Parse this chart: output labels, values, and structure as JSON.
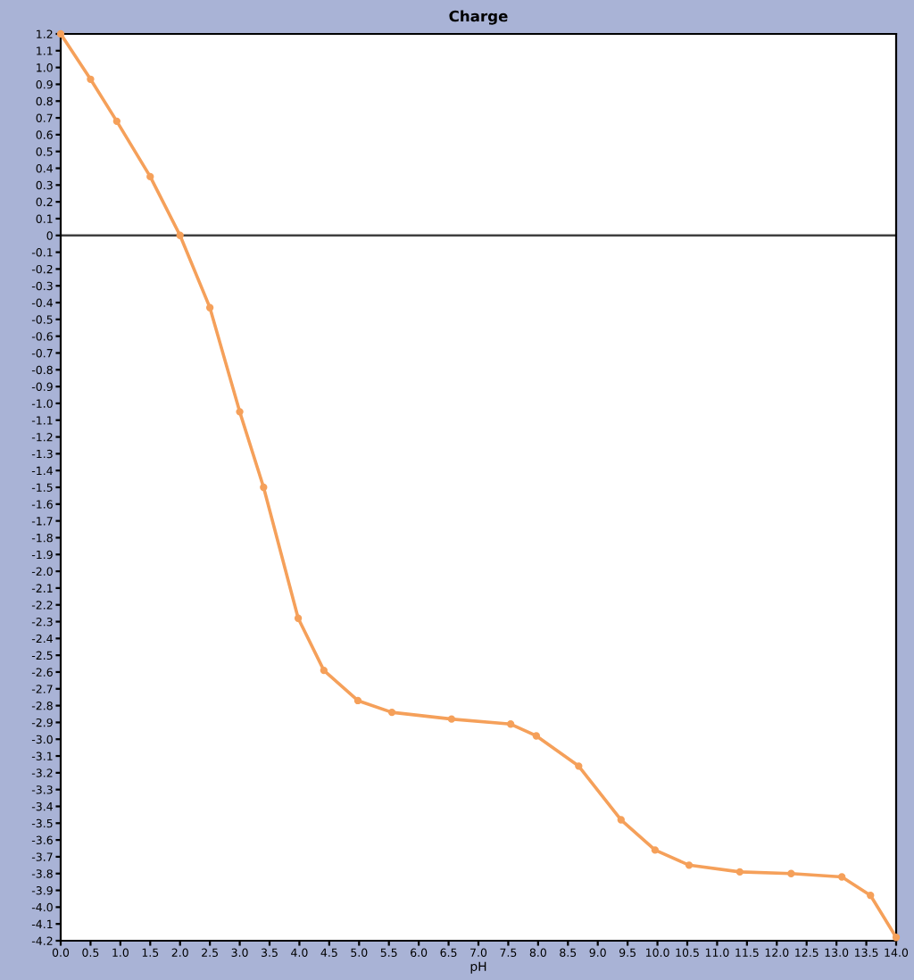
{
  "chart_data": {
    "type": "line",
    "title": "Charge",
    "xlabel": "pH",
    "series": [
      {
        "color": "#f5a05a",
        "x": [
          0,
          0.5,
          0.94,
          1.5,
          2.0,
          2.5,
          3.0,
          3.4,
          3.98,
          4.41,
          4.98,
          5.55,
          6.55,
          7.54,
          7.97,
          8.68,
          9.39,
          9.96,
          10.53,
          11.38,
          12.24,
          13.09,
          13.57,
          14.0
        ],
        "values": [
          1.2,
          0.93,
          0.68,
          0.35,
          0.0,
          -0.43,
          -1.05,
          -1.5,
          -2.28,
          -2.59,
          -2.77,
          -2.84,
          -2.88,
          -2.91,
          -2.98,
          -3.16,
          -3.48,
          -3.66,
          -3.75,
          -3.79,
          -3.8,
          -3.82,
          -3.93,
          -4.18
        ]
      }
    ],
    "xlim": [
      0,
      14
    ],
    "xticks": [
      {
        "value": 0,
        "label": "0.0"
      },
      {
        "value": 0.5,
        "label": "0.5"
      },
      {
        "value": 1,
        "label": "1.0"
      },
      {
        "value": 1.5,
        "label": "1.5"
      },
      {
        "value": 2,
        "label": "2.0"
      },
      {
        "value": 2.5,
        "label": "2.5"
      },
      {
        "value": 3,
        "label": "3.0"
      },
      {
        "value": 3.5,
        "label": "3.5"
      },
      {
        "value": 4,
        "label": "4.0"
      },
      {
        "value": 4.5,
        "label": "4.5"
      },
      {
        "value": 5,
        "label": "5.0"
      },
      {
        "value": 5.5,
        "label": "5.5"
      },
      {
        "value": 6,
        "label": "6.0"
      },
      {
        "value": 6.5,
        "label": "6.5"
      },
      {
        "value": 7,
        "label": "7.0"
      },
      {
        "value": 7.5,
        "label": "7.5"
      },
      {
        "value": 8,
        "label": "8.0"
      },
      {
        "value": 8.5,
        "label": "8.5"
      },
      {
        "value": 9,
        "label": "9.0"
      },
      {
        "value": 9.5,
        "label": "9.5"
      },
      {
        "value": 10,
        "label": "10.0"
      },
      {
        "value": 10.5,
        "label": "10.5"
      },
      {
        "value": 11,
        "label": "11.0"
      },
      {
        "value": 11.5,
        "label": "11.5"
      },
      {
        "value": 12,
        "label": "12.0"
      },
      {
        "value": 12.5,
        "label": "12.5"
      },
      {
        "value": 13,
        "label": "13.0"
      },
      {
        "value": 13.5,
        "label": "13.5"
      },
      {
        "value": 14,
        "label": "14.0"
      }
    ],
    "ylim": [
      -4.2,
      1.2
    ],
    "yticks": [
      1.2,
      1.1,
      {
        "value": 1,
        "label": "1.0"
      },
      0.9,
      0.8,
      0.7,
      0.6,
      0.5,
      0.4,
      0.3,
      0.2,
      0.1,
      0,
      -0.1,
      -0.2,
      -0.3,
      -0.4,
      -0.5,
      -0.6,
      -0.7,
      -0.8,
      -0.9,
      {
        "value": -1,
        "label": "-1.0"
      },
      -1.1,
      -1.2,
      -1.3,
      -1.4,
      -1.5,
      -1.6,
      -1.7,
      -1.8,
      -1.9,
      {
        "value": -2,
        "label": "-2.0"
      },
      -2.1,
      -2.2,
      -2.3,
      -2.4,
      -2.5,
      -2.6,
      -2.7,
      -2.8,
      -2.9,
      {
        "value": -3,
        "label": "-3.0"
      },
      -3.1,
      -3.2,
      -3.3,
      -3.4,
      -3.5,
      -3.6,
      -3.7,
      -3.8,
      -3.9,
      {
        "value": -4,
        "label": "-4.0"
      },
      -4.1,
      -4.2
    ],
    "ref_lines": [
      {
        "axis": "y",
        "value": 0,
        "color": "#404040"
      }
    ],
    "grid": false,
    "legend": false,
    "marker": "circle",
    "line_style": "solid"
  }
}
